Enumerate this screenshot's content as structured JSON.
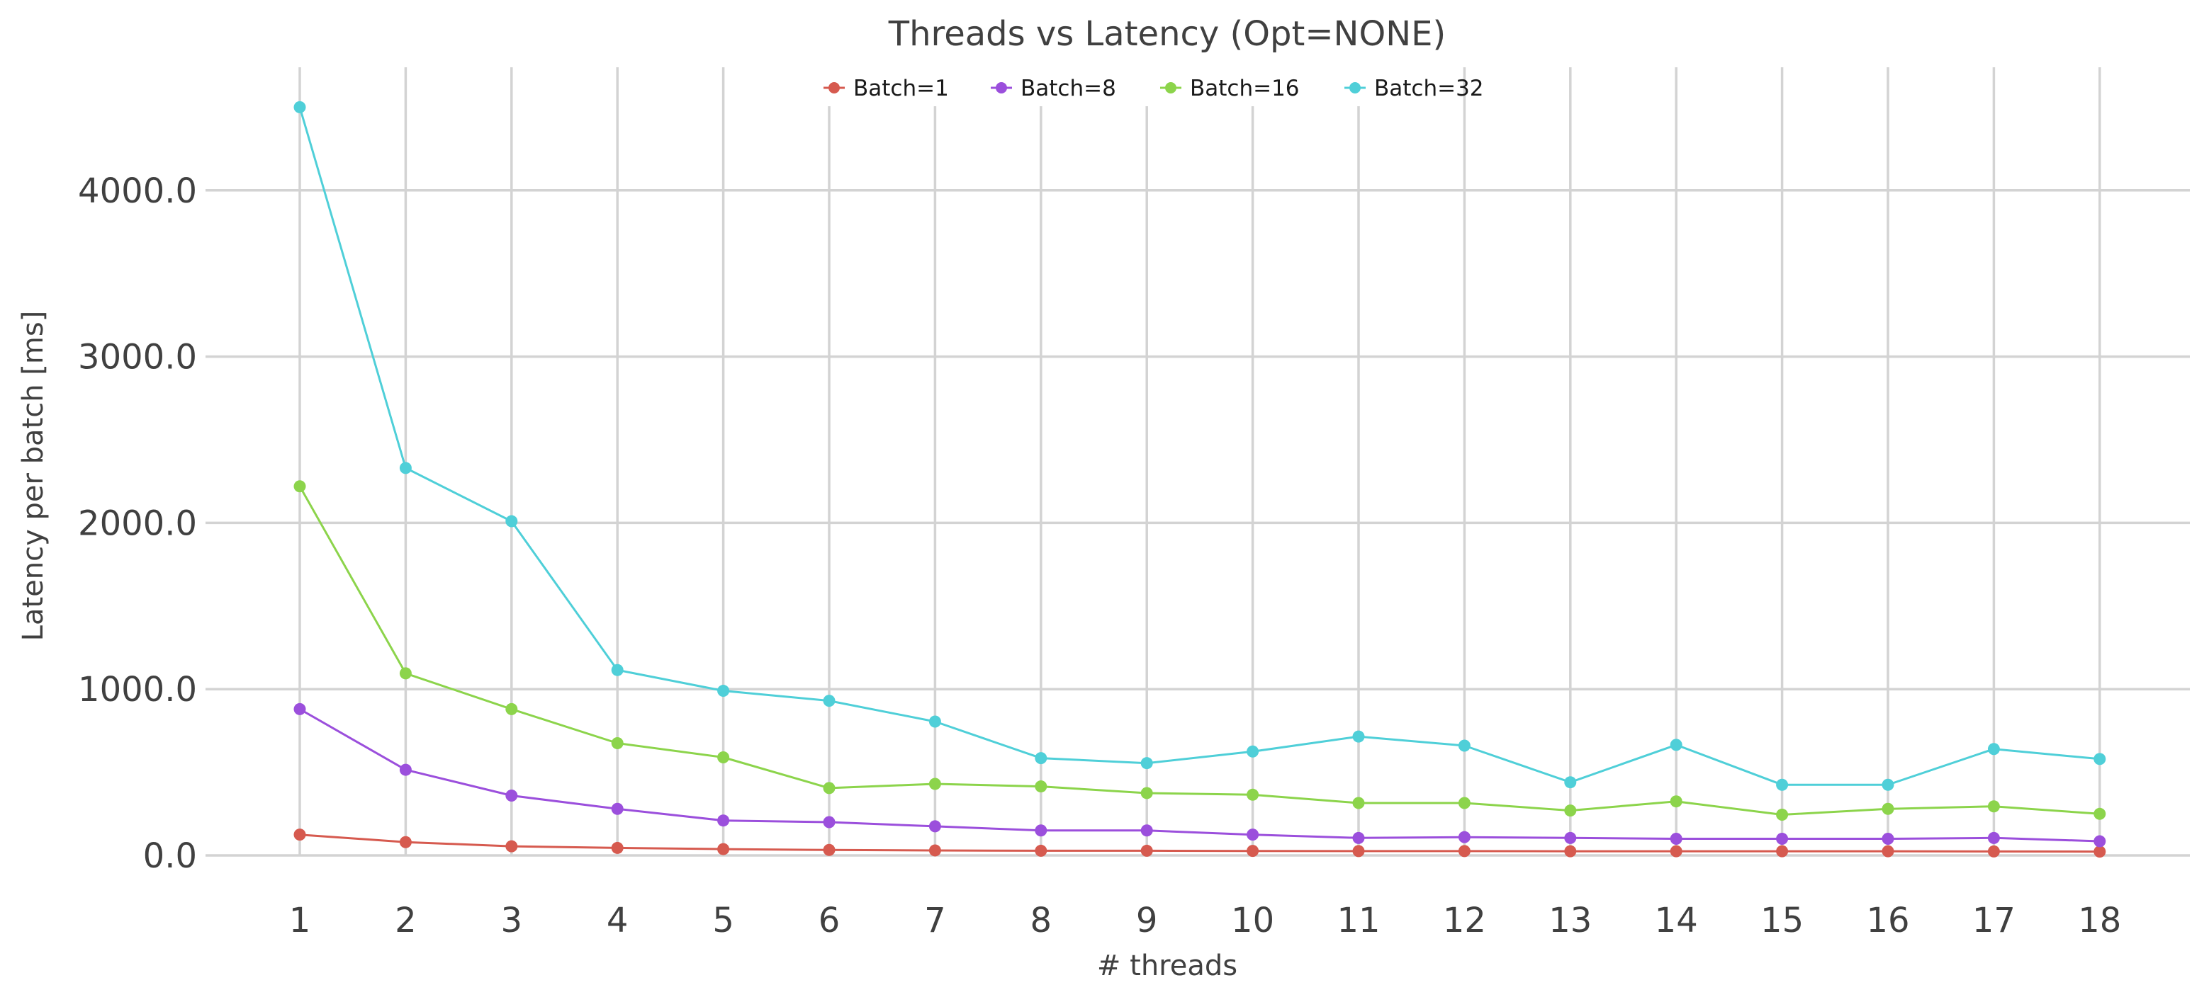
{
  "chart_data": {
    "type": "line",
    "title": "Threads vs Latency (Opt=NONE)",
    "xlabel": "# threads",
    "ylabel": "Latency per batch [ms]",
    "x": [
      1,
      2,
      3,
      4,
      5,
      6,
      7,
      8,
      9,
      10,
      11,
      12,
      13,
      14,
      15,
      16,
      17,
      18
    ],
    "xlim": [
      0.2,
      18.8
    ],
    "ylim": [
      -220,
      4600
    ],
    "yticks": [
      0,
      1000,
      2000,
      3000,
      4000
    ],
    "ytick_labels": [
      "0.0",
      "1000.0",
      "2000.0",
      "3000.0",
      "4000.0"
    ],
    "grid": true,
    "legend_position": "top-center",
    "series": [
      {
        "name": "Batch=1",
        "color": "#d65a4f",
        "values": [
          125,
          80,
          55,
          45,
          38,
          33,
          30,
          28,
          28,
          27,
          26,
          26,
          25,
          25,
          25,
          25,
          24,
          23
        ]
      },
      {
        "name": "Batch=8",
        "color": "#9b4fdc",
        "values": [
          880,
          515,
          360,
          280,
          210,
          200,
          175,
          150,
          150,
          125,
          105,
          110,
          105,
          100,
          100,
          100,
          105,
          85
        ]
      },
      {
        "name": "Batch=16",
        "color": "#8cd44b",
        "values": [
          2220,
          1095,
          880,
          675,
          590,
          405,
          430,
          415,
          375,
          365,
          315,
          315,
          270,
          325,
          245,
          280,
          295,
          250
        ]
      },
      {
        "name": "Batch=32",
        "color": "#4fcfd8",
        "values": [
          4500,
          2330,
          2010,
          1115,
          990,
          930,
          805,
          585,
          555,
          625,
          715,
          660,
          440,
          665,
          425,
          425,
          640,
          580
        ]
      }
    ]
  }
}
